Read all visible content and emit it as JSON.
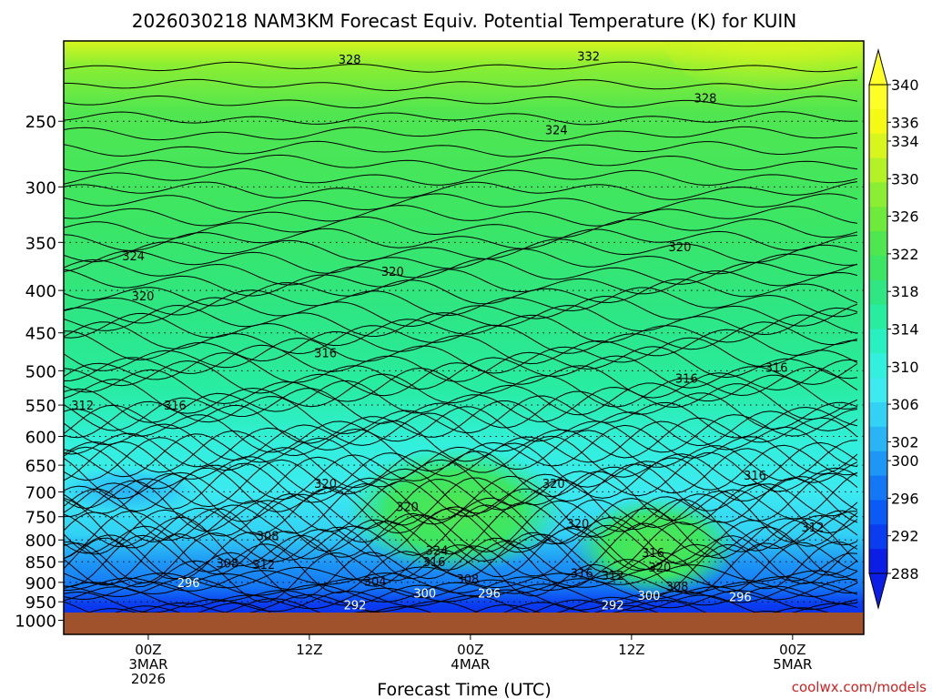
{
  "chart_data": {
    "type": "heatmap",
    "title": "2026030218 NAM3KM Forecast Equiv. Potential Temperature (K) for KUIN",
    "xlabel": "Forecast Time (UTC)",
    "ylabel": "",
    "watermark": "coolwx.com/models",
    "x_ticks": [
      {
        "hour": 6,
        "lines": [
          "00Z",
          "3MAR",
          "2026"
        ]
      },
      {
        "hour": 18,
        "lines": [
          "12Z"
        ]
      },
      {
        "hour": 30,
        "lines": [
          "00Z",
          "4MAR"
        ]
      },
      {
        "hour": 42,
        "lines": [
          "12Z"
        ]
      },
      {
        "hour": 54,
        "lines": [
          "00Z",
          "5MAR"
        ]
      }
    ],
    "xlim": [
      -0.3,
      59.3
    ],
    "y_scale": "log",
    "ylim": [
      1040,
      200
    ],
    "y_ticks": [
      250,
      300,
      350,
      400,
      450,
      500,
      550,
      600,
      650,
      700,
      750,
      800,
      850,
      900,
      950,
      1000
    ],
    "colorbar": {
      "levels": [
        288,
        290,
        292,
        294,
        296,
        298,
        300,
        302,
        304,
        306,
        308,
        310,
        312,
        314,
        316,
        318,
        320,
        322,
        324,
        326,
        328,
        330,
        332,
        334,
        336,
        338,
        340
      ],
      "labels": [
        288,
        292,
        296,
        300,
        302,
        306,
        310,
        314,
        318,
        322,
        326,
        330,
        334,
        336,
        340
      ],
      "colors": [
        "#0a1ee6",
        "#0a3cf0",
        "#0a5af5",
        "#1478f5",
        "#1e96f5",
        "#28b4f5",
        "#32d2f5",
        "#3ceaf0",
        "#32f0dc",
        "#28f0c0",
        "#28eca0",
        "#2ee682",
        "#3ce664",
        "#50e650",
        "#6eea3c",
        "#8cee32",
        "#b4f228",
        "#d8f61e",
        "#f5fa14",
        "#ffff28"
      ]
    },
    "contour_labels": [
      {
        "hour": 21,
        "p": 212,
        "value": "328"
      },
      {
        "hour": 38.8,
        "p": 210,
        "value": "332"
      },
      {
        "hour": 47.5,
        "p": 236,
        "value": "328"
      },
      {
        "hour": 36.4,
        "p": 258,
        "value": "324"
      },
      {
        "hour": 4.9,
        "p": 366,
        "value": "324"
      },
      {
        "hour": 24.2,
        "p": 382,
        "value": "320"
      },
      {
        "hour": 45.6,
        "p": 357,
        "value": "320"
      },
      {
        "hour": 5.6,
        "p": 409,
        "value": "320"
      },
      {
        "hour": 19.2,
        "p": 479,
        "value": "316"
      },
      {
        "hour": 52.8,
        "p": 499,
        "value": "316"
      },
      {
        "hour": 46.1,
        "p": 514,
        "value": "316"
      },
      {
        "hour": 1.1,
        "p": 554,
        "value": "312"
      },
      {
        "hour": 8,
        "p": 554,
        "value": "316"
      },
      {
        "hour": 51.2,
        "p": 673,
        "value": "316"
      },
      {
        "hour": 19.2,
        "p": 689,
        "value": "320"
      },
      {
        "hour": 25.3,
        "p": 735,
        "value": "320"
      },
      {
        "hour": 36.2,
        "p": 689,
        "value": "320"
      },
      {
        "hour": 38,
        "p": 770,
        "value": "320"
      },
      {
        "hour": 27.5,
        "p": 829,
        "value": "324"
      },
      {
        "hour": 27.3,
        "p": 856,
        "value": "316"
      },
      {
        "hour": 14.9,
        "p": 796,
        "value": "308"
      },
      {
        "hour": 11.9,
        "p": 859,
        "value": "308"
      },
      {
        "hour": 14.6,
        "p": 862,
        "value": "312"
      },
      {
        "hour": 43.6,
        "p": 835,
        "value": "316"
      },
      {
        "hour": 44.1,
        "p": 869,
        "value": "320"
      },
      {
        "hour": 55.5,
        "p": 778,
        "value": "312"
      },
      {
        "hour": 9,
        "p": 907,
        "value": "296"
      },
      {
        "hour": 22.9,
        "p": 904,
        "value": "304"
      },
      {
        "hour": 26.6,
        "p": 934,
        "value": "300"
      },
      {
        "hour": 29.8,
        "p": 898,
        "value": "308"
      },
      {
        "hour": 31.4,
        "p": 934,
        "value": "296"
      },
      {
        "hour": 38.3,
        "p": 883,
        "value": "316"
      },
      {
        "hour": 40.6,
        "p": 889,
        "value": "312"
      },
      {
        "hour": 45.4,
        "p": 916,
        "value": "308"
      },
      {
        "hour": 43.3,
        "p": 940,
        "value": "300"
      },
      {
        "hour": 50.1,
        "p": 943,
        "value": "296"
      },
      {
        "hour": 21.4,
        "p": 965,
        "value": "292"
      },
      {
        "hour": 40.6,
        "p": 965,
        "value": "292"
      }
    ],
    "grid": "dotted horizontal",
    "legend": "right"
  }
}
